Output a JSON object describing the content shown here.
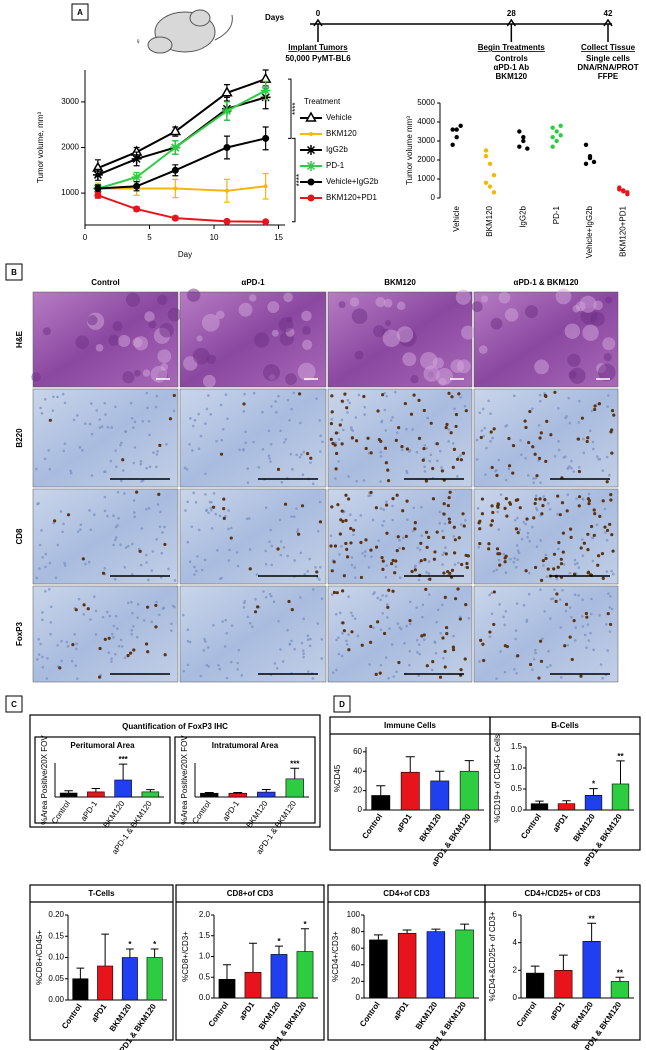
{
  "panel_labels": [
    "A",
    "B",
    "C",
    "D"
  ],
  "symbol": "♀",
  "timeline": {
    "label": "Days",
    "events": [
      {
        "day": 0,
        "title": "Implant Tumors",
        "lines": [
          "50,000 PyMT-BL6"
        ]
      },
      {
        "day": 28,
        "title": "Begin Treatments",
        "lines": [
          "Controls",
          "αPD-1 Ab",
          "BKM120"
        ]
      },
      {
        "day": 42,
        "title": "Collect Tissue",
        "lines": [
          "Single cells",
          "DNA/RNA/PROT",
          "FFPE"
        ]
      }
    ]
  },
  "histology": {
    "columns": [
      "Control",
      "αPD-1",
      "BKM120",
      "αPD-1 & BKM120"
    ],
    "rows": [
      "H&E",
      "B220",
      "CD8",
      "FoxP3"
    ]
  },
  "quantification_title": "Quantification of FoxP3 IHC",
  "chart_data": [
    {
      "type": "line",
      "xlabel": "Day",
      "ylabel": "Tumor volume, mm³",
      "legend_title": "Treatment",
      "x": [
        1,
        4,
        7,
        11,
        14
      ],
      "xlim": [
        0,
        15.5
      ],
      "xticks": [
        0,
        5,
        10,
        15
      ],
      "ylim": [
        300,
        3700
      ],
      "yticks": [
        1000,
        2000,
        3000
      ],
      "series": [
        {
          "name": "Vehicle",
          "color": "#000000",
          "marker": "triangle",
          "values": [
            1550,
            1900,
            2350,
            3200,
            3500
          ],
          "errors": [
            180,
            100,
            100,
            180,
            200
          ]
        },
        {
          "name": "BKM120",
          "color": "#f5b800",
          "marker": "dot",
          "values": [
            1100,
            1100,
            1100,
            1050,
            1150
          ],
          "errors": [
            120,
            150,
            200,
            250,
            280
          ]
        },
        {
          "name": "IgG2b",
          "color": "#000000",
          "marker": "star",
          "values": [
            1400,
            1750,
            2000,
            2850,
            3100
          ],
          "errors": [
            120,
            150,
            150,
            250,
            250
          ]
        },
        {
          "name": "PD-1",
          "color": "#2ecc40",
          "marker": "star",
          "values": [
            1100,
            1350,
            2000,
            2800,
            3250
          ],
          "errors": [
            80,
            100,
            150,
            200,
            200
          ]
        },
        {
          "name": "Vehicle+IgG2b",
          "color": "#000000",
          "marker": "circle",
          "values": [
            1100,
            1150,
            1500,
            2000,
            2200
          ],
          "errors": [
            80,
            100,
            120,
            250,
            250
          ]
        },
        {
          "name": "BKM120+PD1",
          "color": "#e8141b",
          "marker": "circle",
          "values": [
            950,
            650,
            450,
            380,
            370
          ],
          "errors": [
            60,
            50,
            40,
            30,
            30
          ]
        }
      ],
      "annotations": [
        {
          "text": "****",
          "between": [
            "Vehicle",
            "Vehicle+IgG2b"
          ]
        },
        {
          "text": "****",
          "between": [
            "Vehicle+IgG2b",
            "BKM120+PD1"
          ]
        }
      ]
    },
    {
      "type": "dot",
      "ylabel": "Tumor volume mm³",
      "ylim": [
        0,
        5000
      ],
      "yticks": [
        0,
        1000,
        2000,
        3000,
        4000,
        5000
      ],
      "categories": [
        "Vehicle",
        "BKM120",
        "IgG2b",
        "PD-1",
        "Vehicle+IgG2b",
        "BKM120+PD1"
      ],
      "colors": [
        "#000000",
        "#f5b800",
        "#000000",
        "#2ecc40",
        "#000000",
        "#e8141b"
      ],
      "points": [
        [
          3600,
          3200,
          3800,
          2800,
          3600
        ],
        [
          2500,
          1800,
          1200,
          800,
          600,
          300,
          2200
        ],
        [
          3500,
          3200,
          2600,
          2700,
          3000
        ],
        [
          3700,
          3500,
          3300,
          3200,
          3000,
          3800,
          2700
        ],
        [
          2800,
          2200,
          1900,
          1800,
          2100
        ],
        [
          500,
          400,
          300,
          450,
          350,
          200,
          550
        ]
      ]
    },
    {
      "type": "bar",
      "title": "Peritumoral Area",
      "ylabel": "%Area Positive/20X FOV",
      "ylim": [
        0,
        6
      ],
      "categories": [
        "Control",
        "aPD-1",
        "BKM120",
        "aPD-1 & BKM120"
      ],
      "colors": [
        "#000000",
        "#e8141b",
        "#1f3ff0",
        "#2ecc40"
      ],
      "values": [
        0.7,
        0.9,
        3.0,
        0.9
      ],
      "errors": [
        0.4,
        0.6,
        2.8,
        0.4
      ],
      "annotations": [
        {
          "category": "BKM120",
          "text": "***"
        }
      ]
    },
    {
      "type": "bar",
      "title": "Intratumoral Area",
      "ylabel": "%Area Positive/20X FOV",
      "ylim": [
        0,
        4.5
      ],
      "categories": [
        "Control",
        "aPD-1",
        "BKM120",
        "aPD-1 & BKM120"
      ],
      "colors": [
        "#000000",
        "#e8141b",
        "#1f3ff0",
        "#2ecc40"
      ],
      "values": [
        0.5,
        0.5,
        0.65,
        2.4
      ],
      "errors": [
        0.1,
        0.1,
        0.35,
        1.4
      ],
      "annotations": [
        {
          "category": "aPD-1 & BKM120",
          "text": "***"
        }
      ]
    },
    {
      "type": "bar",
      "title": "Immune Cells",
      "ylabel": "%CD45",
      "ylim": [
        0,
        65
      ],
      "yticks": [
        0,
        20,
        40,
        60
      ],
      "categories": [
        "Control",
        "aPD1",
        "BKM120",
        "aPD1 & BKM120"
      ],
      "colors": [
        "#000000",
        "#e8141b",
        "#1f3ff0",
        "#2ecc40"
      ],
      "values": [
        15,
        39,
        30,
        40
      ],
      "errors": [
        10,
        16,
        10,
        11
      ],
      "annotations": []
    },
    {
      "type": "bar",
      "title": "B-Cells",
      "ylabel": "%CD19+ of CD45+ Cells",
      "ylim": [
        0,
        1.5
      ],
      "yticks": [
        {
          "value": 0,
          "label": "0.0"
        },
        0.5,
        {
          "value": 1,
          "label": "1.0"
        },
        1.5
      ],
      "categories": [
        "Control",
        "aPD1",
        "BKM120",
        "aPD1 & BKM120"
      ],
      "colors": [
        "#000000",
        "#e8141b",
        "#1f3ff0",
        "#2ecc40"
      ],
      "values": [
        0.15,
        0.15,
        0.35,
        0.62
      ],
      "errors": [
        0.06,
        0.07,
        0.16,
        0.55
      ],
      "annotations": [
        {
          "category": "BKM120",
          "text": "*"
        },
        {
          "category": "aPD1 & BKM120",
          "text": "**"
        }
      ]
    },
    {
      "type": "bar",
      "title": "T-Cells",
      "ylabel": "%CD8+/CD45+",
      "ylim": [
        0,
        0.2
      ],
      "yticks": [
        {
          "value": 0,
          "label": "0.00"
        },
        0.05,
        {
          "value": 0.1,
          "label": "0.10"
        },
        0.15,
        {
          "value": 0.2,
          "label": "0.20"
        }
      ],
      "categories": [
        "Control",
        "aPD1",
        "BKM120",
        "aPD1 & BKM120"
      ],
      "colors": [
        "#000000",
        "#e8141b",
        "#1f3ff0",
        "#2ecc40"
      ],
      "values": [
        0.05,
        0.08,
        0.1,
        0.1
      ],
      "errors": [
        0.025,
        0.075,
        0.02,
        0.02
      ],
      "annotations": [
        {
          "category": "BKM120",
          "text": "*"
        },
        {
          "category": "aPD1 & BKM120",
          "text": "*"
        }
      ]
    },
    {
      "type": "bar",
      "title": "CD8+of CD3",
      "ylabel": "%CD8+/CD3+",
      "ylim": [
        0,
        2
      ],
      "yticks": [
        {
          "value": 0,
          "label": "0.0"
        },
        0.5,
        {
          "value": 1,
          "label": "1.0"
        },
        1.5,
        {
          "value": 2,
          "label": "2.0"
        }
      ],
      "categories": [
        "Control",
        "aPD1",
        "BKM120",
        "aPD1 & BKM120"
      ],
      "colors": [
        "#000000",
        "#e8141b",
        "#1f3ff0",
        "#2ecc40"
      ],
      "values": [
        0.45,
        0.62,
        1.05,
        1.12
      ],
      "errors": [
        0.35,
        0.7,
        0.2,
        0.55
      ],
      "annotations": [
        {
          "category": "BKM120",
          "text": "*"
        },
        {
          "category": "aPD1 & BKM120",
          "text": "*"
        }
      ]
    },
    {
      "type": "bar",
      "title": "CD4+of CD3",
      "ylabel": "%CD4+/CD3+",
      "ylim": [
        0,
        100
      ],
      "yticks": [
        0,
        20,
        40,
        60,
        80,
        100
      ],
      "categories": [
        "Control",
        "aPD1",
        "BKM120",
        "aPD1 & BKM120"
      ],
      "colors": [
        "#000000",
        "#e8141b",
        "#1f3ff0",
        "#2ecc40"
      ],
      "values": [
        70,
        78,
        80,
        82
      ],
      "errors": [
        6,
        4,
        3,
        7
      ],
      "annotations": []
    },
    {
      "type": "bar",
      "title": "CD4+/CD25+ of CD3",
      "ylabel": "%CD4+&CD25+ of CD3+",
      "ylim": [
        0,
        6
      ],
      "yticks": [
        0,
        2,
        4,
        6
      ],
      "categories": [
        "Control",
        "aPD1",
        "BKM120",
        "aPD1 & BKM120"
      ],
      "colors": [
        "#000000",
        "#e8141b",
        "#1f3ff0",
        "#2ecc40"
      ],
      "values": [
        1.8,
        2.0,
        4.1,
        1.2
      ],
      "errors": [
        0.5,
        1.1,
        1.3,
        0.3
      ],
      "annotations": [
        {
          "category": "BKM120",
          "text": "**"
        },
        {
          "category": "aPD1 & BKM120",
          "text": "**"
        }
      ]
    }
  ]
}
